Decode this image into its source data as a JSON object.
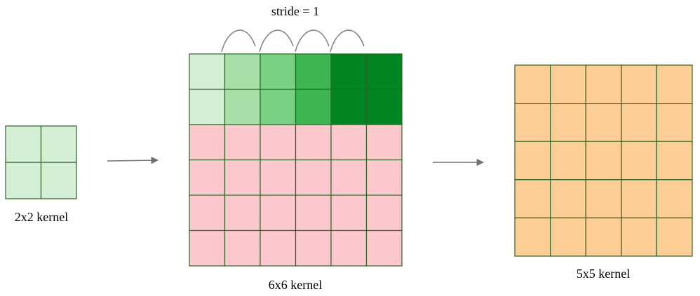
{
  "stride_label": "stride = 1",
  "kernel": {
    "label": "2x2 kernel",
    "rows": 2,
    "cols": 2,
    "fill": "#d5efd6"
  },
  "input": {
    "label": "6x6 kernel",
    "rows": 6,
    "cols": 6,
    "stride_steps": 4,
    "top_two_rows_column_fills": [
      "#d5efd6",
      "#a6e0a8",
      "#79d283",
      "#3db552",
      "#008522",
      "#008522"
    ],
    "remaining_fill": "#fbc8ce"
  },
  "output": {
    "label": "5x5 kernel",
    "rows": 5,
    "cols": 5,
    "fill": "#fdcd96"
  },
  "colors": {
    "grid_line": "#2e6425",
    "arrow": "#707070",
    "stride_arc": "#808080"
  }
}
